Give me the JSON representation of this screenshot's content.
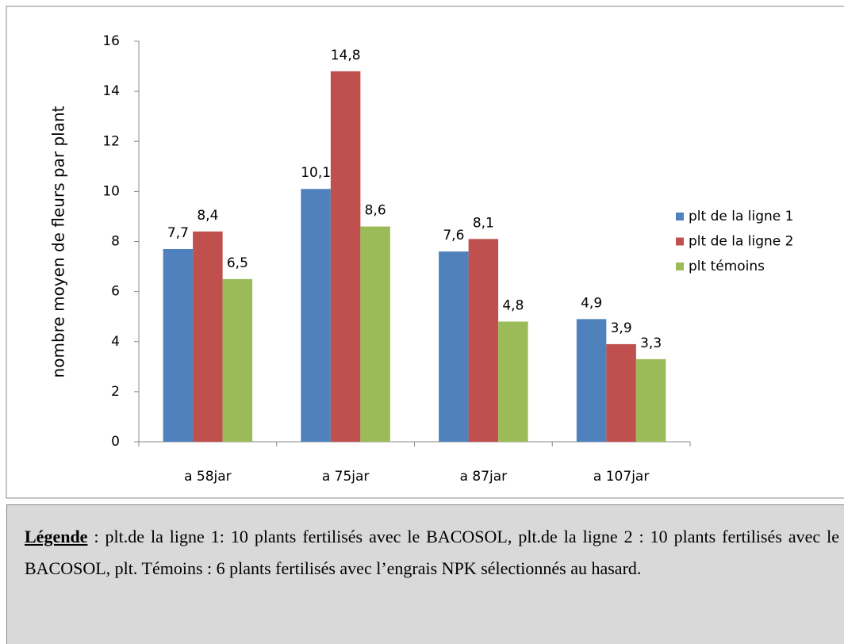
{
  "chart_data": {
    "type": "bar",
    "y_label": "nombre moyen de fleurs par plant",
    "categories": [
      "a 58jar",
      "a 75jar",
      "a 87jar",
      "a 107jar"
    ],
    "series": [
      {
        "name": "plt de la ligne 1",
        "color": "#4f81bd",
        "values": [
          7.7,
          10.1,
          7.6,
          4.9
        ],
        "value_labels": [
          "7,7",
          "10,1",
          "7,6",
          "4,9"
        ]
      },
      {
        "name": "plt de la ligne 2",
        "color": "#c0504d",
        "values": [
          8.4,
          14.8,
          8.1,
          3.9
        ],
        "value_labels": [
          "8,4",
          "14,8",
          "8,1",
          "3,9"
        ]
      },
      {
        "name": "plt témoins",
        "color": "#9bbb59",
        "values": [
          6.5,
          8.6,
          4.8,
          3.3
        ],
        "value_labels": [
          "6,5",
          "8,6",
          "4,8",
          "3,3"
        ]
      }
    ],
    "ylim": [
      0,
      16
    ],
    "yticks": [
      0,
      2,
      4,
      6,
      8,
      10,
      12,
      14,
      16
    ],
    "grid": false,
    "legend": "right"
  },
  "caption": {
    "label": "Légende",
    "text": " : plt.de la ligne 1: 10 plants fertilisés avec le BACOSOL, plt.de la ligne 2 : 10 plants fertilisés avec le BACOSOL, plt. Témoins : 6 plants fertilisés avec l’engrais NPK sélectionnés au hasard."
  }
}
